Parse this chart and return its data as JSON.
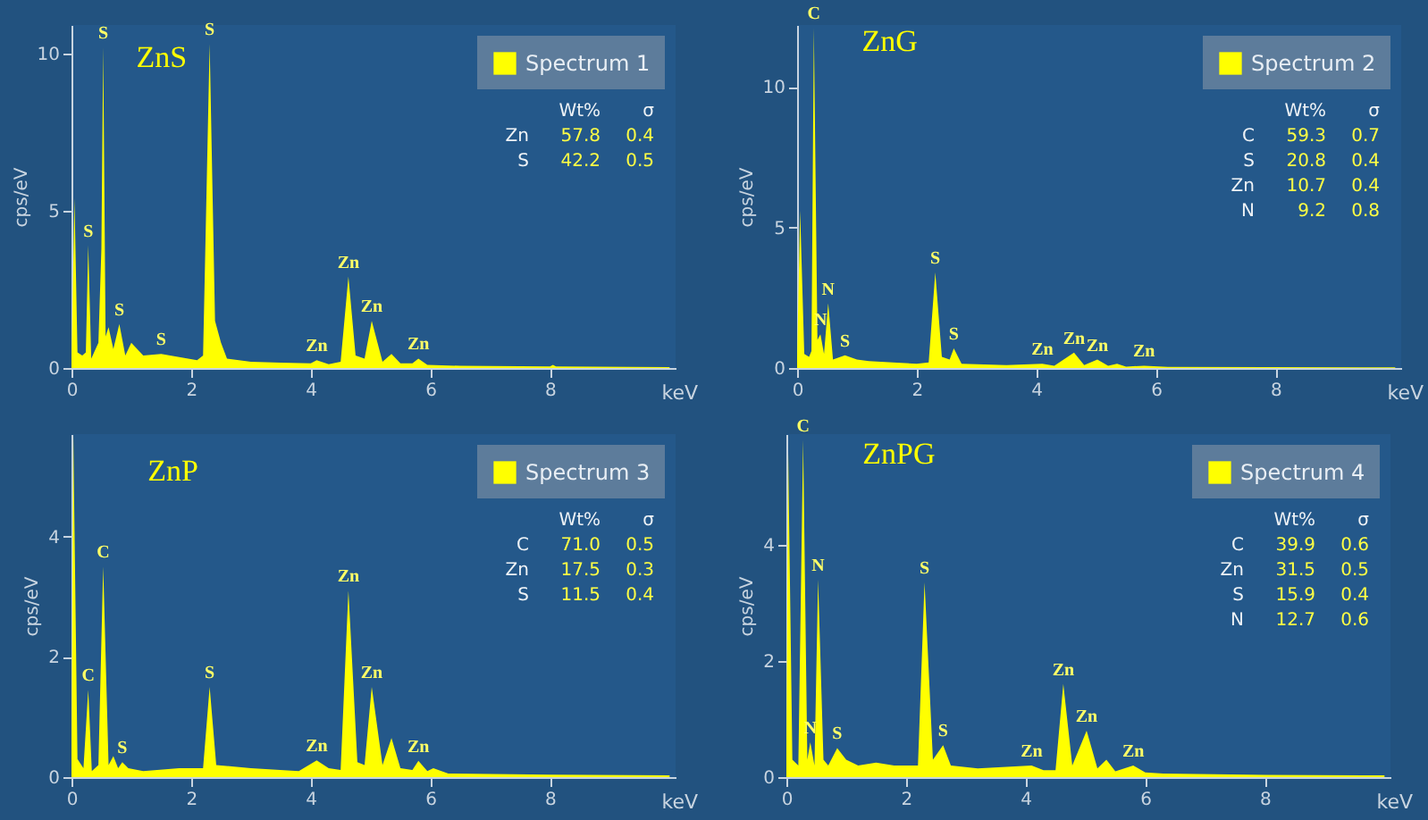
{
  "chart_data": [
    {
      "type": "area",
      "title": "ZnS",
      "xlabel": "keV",
      "ylabel": "cps/eV",
      "legend": "top right",
      "grid": false,
      "xlim": [
        0,
        10.1
      ],
      "ylim": [
        0,
        10.9
      ],
      "xticks": [
        0,
        2,
        4,
        6,
        8
      ],
      "yticks": [
        0,
        5,
        10
      ],
      "x": [
        0,
        0.05,
        0.1,
        0.18,
        0.24,
        0.28,
        0.33,
        0.45,
        0.5,
        0.53,
        0.57,
        0.62,
        0.7,
        0.8,
        0.9,
        1.0,
        1.2,
        1.5,
        1.8,
        2.1,
        2.2,
        2.31,
        2.4,
        2.5,
        2.6,
        3.0,
        3.5,
        4.0,
        4.1,
        4.3,
        4.5,
        4.63,
        4.75,
        4.9,
        5.02,
        5.2,
        5.35,
        5.5,
        5.7,
        5.8,
        5.95,
        6.5,
        8.0,
        8.05,
        8.1,
        10
      ],
      "series": [
        {
          "name": "Spectrum 1",
          "color": "#ffff00",
          "values": [
            0.3,
            5.4,
            0.5,
            0.4,
            0.5,
            3.9,
            0.3,
            0.8,
            3.8,
            10.2,
            1.0,
            1.3,
            0.6,
            1.4,
            0.4,
            0.8,
            0.4,
            0.45,
            0.35,
            0.25,
            0.4,
            10.3,
            1.5,
            0.8,
            0.3,
            0.2,
            0.17,
            0.15,
            0.25,
            0.12,
            0.2,
            2.9,
            0.4,
            0.3,
            1.5,
            0.2,
            0.45,
            0.15,
            0.15,
            0.3,
            0.1,
            0.07,
            0.05,
            0.1,
            0.05,
            0.03
          ]
        }
      ],
      "annotations": [
        "Wt%",
        "σ",
        "Zn",
        "57.8",
        "0.4",
        "S",
        "42.2",
        "0.5",
        {
          "text": "S",
          "x": 0.53,
          "y": 10.2
        },
        {
          "text": "S",
          "x": 0.28,
          "y": 3.9
        },
        {
          "text": "S",
          "x": 0.8,
          "y": 1.4
        },
        {
          "text": "S",
          "x": 1.5,
          "y": 0.45
        },
        {
          "text": "S",
          "x": 2.31,
          "y": 10.3
        },
        {
          "text": "Zn",
          "x": 4.1,
          "y": 0.25
        },
        {
          "text": "Zn",
          "x": 4.63,
          "y": 2.9
        },
        {
          "text": "Zn",
          "x": 5.02,
          "y": 1.5
        },
        {
          "text": "Zn",
          "x": 5.8,
          "y": 0.3
        }
      ]
    },
    {
      "type": "area",
      "title": "ZnG",
      "xlabel": "keV",
      "ylabel": "cps/eV",
      "legend": "top right",
      "grid": false,
      "xlim": [
        0,
        10.1
      ],
      "ylim": [
        0,
        12.2
      ],
      "xticks": [
        0,
        2,
        4,
        6,
        8
      ],
      "yticks": [
        0,
        5,
        10
      ],
      "x": [
        0,
        0.05,
        0.12,
        0.2,
        0.24,
        0.28,
        0.34,
        0.39,
        0.45,
        0.52,
        0.6,
        0.8,
        1.0,
        1.2,
        1.6,
        2.0,
        2.2,
        2.31,
        2.42,
        2.55,
        2.62,
        2.75,
        3.5,
        4.1,
        4.3,
        4.63,
        4.8,
        5.02,
        5.2,
        5.35,
        5.5,
        5.8,
        6.2,
        10
      ],
      "series": [
        {
          "name": "Spectrum 2",
          "color": "#ffff00",
          "values": [
            0.3,
            5.6,
            0.5,
            0.4,
            0.6,
            12.1,
            1.0,
            1.2,
            0.5,
            2.3,
            0.3,
            0.45,
            0.3,
            0.25,
            0.2,
            0.15,
            0.2,
            3.4,
            0.4,
            0.3,
            0.7,
            0.15,
            0.1,
            0.15,
            0.08,
            0.55,
            0.1,
            0.3,
            0.08,
            0.15,
            0.05,
            0.08,
            0.04,
            0.02
          ]
        }
      ],
      "annotations": [
        "Wt%",
        "σ",
        "C",
        "59.3",
        "0.7",
        "S",
        "20.8",
        "0.4",
        "Zn",
        "10.7",
        "0.4",
        "N",
        "9.2",
        "0.8",
        {
          "text": "C",
          "x": 0.28,
          "y": 12.1
        },
        {
          "text": "N",
          "x": 0.39,
          "y": 1.2
        },
        {
          "text": "N",
          "x": 0.52,
          "y": 2.3
        },
        {
          "text": "S",
          "x": 0.8,
          "y": 0.45
        },
        {
          "text": "S",
          "x": 2.31,
          "y": 3.4
        },
        {
          "text": "S",
          "x": 2.62,
          "y": 0.7
        },
        {
          "text": "Zn",
          "x": 4.1,
          "y": 0.15
        },
        {
          "text": "Zn",
          "x": 4.63,
          "y": 0.55
        },
        {
          "text": "Zn",
          "x": 5.02,
          "y": 0.3
        },
        {
          "text": "Zn",
          "x": 5.8,
          "y": 0.08
        }
      ]
    },
    {
      "type": "area",
      "title": "ZnP",
      "xlabel": "keV",
      "ylabel": "cps/eV",
      "legend": "top right",
      "grid": false,
      "xlim": [
        0,
        10.1
      ],
      "ylim": [
        0,
        5.7
      ],
      "xticks": [
        0,
        2,
        4,
        6,
        8
      ],
      "yticks": [
        0,
        2,
        4
      ],
      "x": [
        0,
        0.03,
        0.1,
        0.2,
        0.28,
        0.34,
        0.45,
        0.53,
        0.62,
        0.7,
        0.78,
        0.85,
        0.95,
        1.2,
        1.8,
        2.2,
        2.31,
        2.42,
        3.0,
        3.8,
        4.1,
        4.3,
        4.5,
        4.63,
        4.78,
        4.9,
        5.02,
        5.2,
        5.35,
        5.5,
        5.7,
        5.8,
        5.95,
        6.05,
        6.3,
        8.0,
        10
      ],
      "series": [
        {
          "name": "Spectrum 3",
          "color": "#ffff00",
          "values": [
            0.3,
            5.7,
            0.3,
            0.15,
            1.45,
            0.1,
            0.2,
            3.5,
            0.2,
            0.35,
            0.15,
            0.25,
            0.15,
            0.1,
            0.15,
            0.15,
            1.5,
            0.2,
            0.15,
            0.1,
            0.28,
            0.15,
            0.12,
            3.1,
            0.25,
            0.2,
            1.5,
            0.2,
            0.65,
            0.15,
            0.12,
            0.27,
            0.1,
            0.15,
            0.06,
            0.04,
            0.03
          ]
        }
      ],
      "annotations": [
        "Wt%",
        "σ",
        "C",
        "71.0",
        "0.5",
        "Zn",
        "17.5",
        "0.3",
        "S",
        "11.5",
        "0.4",
        {
          "text": "C",
          "x": 0.28,
          "y": 1.45
        },
        {
          "text": "C",
          "x": 0.53,
          "y": 3.5
        },
        {
          "text": "S",
          "x": 0.85,
          "y": 0.25
        },
        {
          "text": "S",
          "x": 2.31,
          "y": 1.5
        },
        {
          "text": "Zn",
          "x": 4.1,
          "y": 0.28
        },
        {
          "text": "Zn",
          "x": 4.63,
          "y": 3.1
        },
        {
          "text": "Zn",
          "x": 5.02,
          "y": 1.5
        },
        {
          "text": "Zn",
          "x": 5.8,
          "y": 0.27
        }
      ]
    },
    {
      "type": "area",
      "title": "ZnPG",
      "xlabel": "keV",
      "ylabel": "cps/eV",
      "legend": "top right",
      "grid": false,
      "xlim": [
        0,
        10.1
      ],
      "ylim": [
        0,
        5.9
      ],
      "xticks": [
        0,
        2,
        4,
        6,
        8
      ],
      "yticks": [
        0,
        2,
        4
      ],
      "x": [
        0,
        0.03,
        0.1,
        0.2,
        0.28,
        0.35,
        0.4,
        0.47,
        0.53,
        0.62,
        0.7,
        0.85,
        1.0,
        1.2,
        1.5,
        1.8,
        2.2,
        2.31,
        2.45,
        2.62,
        2.75,
        3.2,
        4.1,
        4.3,
        4.5,
        4.63,
        4.78,
        5.02,
        5.2,
        5.35,
        5.5,
        5.8,
        6.0,
        6.3,
        8.0,
        10
      ],
      "series": [
        {
          "name": "Spectrum 4",
          "color": "#ffff00",
          "values": [
            0.3,
            5.6,
            0.3,
            0.2,
            5.8,
            0.3,
            0.6,
            0.2,
            3.4,
            0.3,
            0.2,
            0.5,
            0.3,
            0.2,
            0.25,
            0.2,
            0.2,
            3.35,
            0.3,
            0.55,
            0.2,
            0.15,
            0.2,
            0.12,
            0.12,
            1.6,
            0.2,
            0.8,
            0.15,
            0.3,
            0.1,
            0.2,
            0.08,
            0.06,
            0.04,
            0.03
          ]
        }
      ],
      "annotations": [
        "Wt%",
        "σ",
        "C",
        "39.9",
        "0.6",
        "Zn",
        "31.5",
        "0.5",
        "S",
        "15.9",
        "0.4",
        "N",
        "12.7",
        "0.6",
        {
          "text": "C",
          "x": 0.28,
          "y": 5.8
        },
        {
          "text": "N",
          "x": 0.4,
          "y": 0.6
        },
        {
          "text": "N",
          "x": 0.53,
          "y": 3.4
        },
        {
          "text": "S",
          "x": 0.85,
          "y": 0.5
        },
        {
          "text": "S",
          "x": 2.31,
          "y": 3.35
        },
        {
          "text": "S",
          "x": 2.62,
          "y": 0.55
        },
        {
          "text": "Zn",
          "x": 4.1,
          "y": 0.2
        },
        {
          "text": "Zn",
          "x": 4.63,
          "y": 1.6
        },
        {
          "text": "Zn",
          "x": 5.02,
          "y": 0.8
        },
        {
          "text": "Zn",
          "x": 5.8,
          "y": 0.2
        }
      ]
    }
  ]
}
